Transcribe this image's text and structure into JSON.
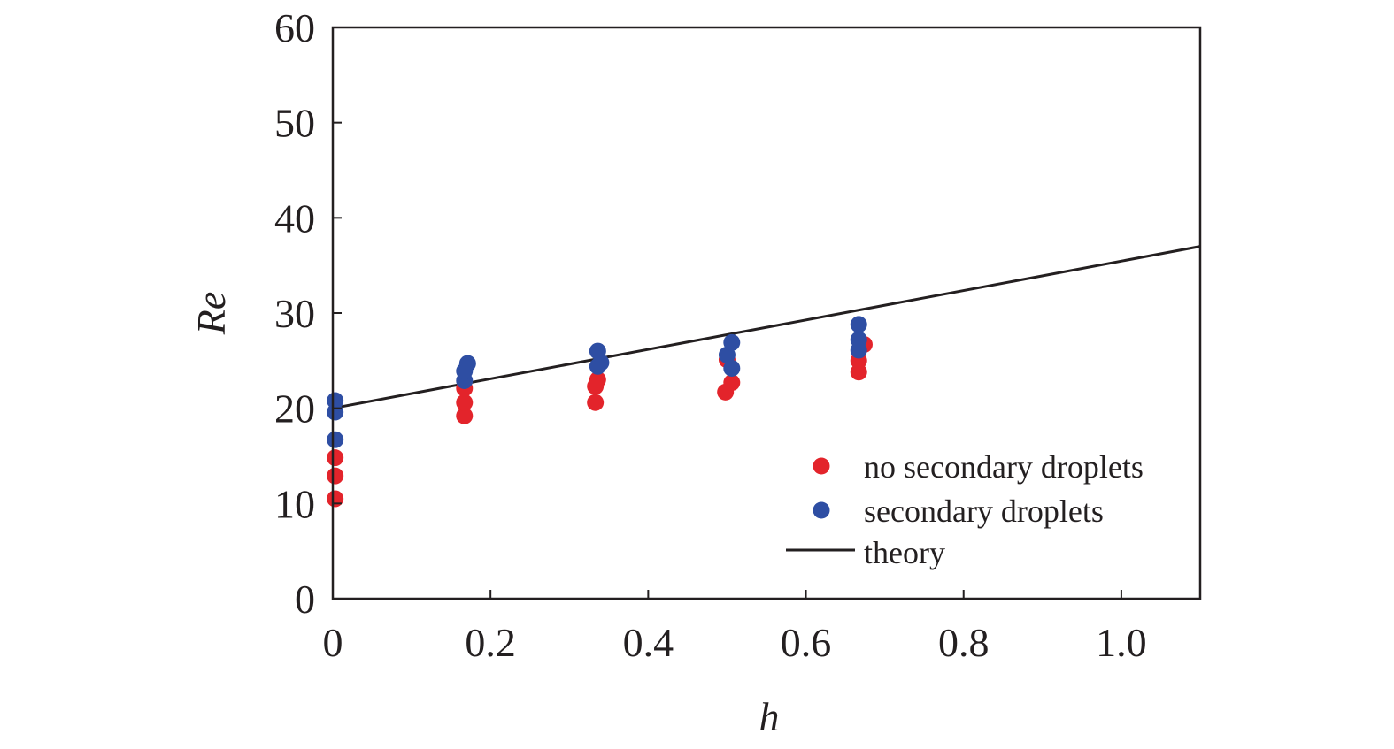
{
  "chart_data": {
    "type": "scatter",
    "title": "",
    "xlabel": "h",
    "ylabel": "Re",
    "xlim": [
      0,
      1.1
    ],
    "ylim": [
      0,
      60
    ],
    "xticks": [
      0,
      0.2,
      0.4,
      0.6,
      0.8,
      1.0
    ],
    "xtick_labels": [
      "0",
      "0.2",
      "0.4",
      "0.6",
      "0.8",
      "1.0"
    ],
    "yticks": [
      0,
      10,
      20,
      30,
      40,
      50,
      60
    ],
    "ytick_labels": [
      "0",
      "10",
      "20",
      "30",
      "40",
      "50",
      "60"
    ],
    "grid": false,
    "legend_position": "bottom-right",
    "series": [
      {
        "name": "no secondary droplets",
        "kind": "scatter",
        "color": "#e3242b",
        "points": [
          [
            0.003,
            10.5
          ],
          [
            0.003,
            12.9
          ],
          [
            0.003,
            14.8
          ],
          [
            0.167,
            19.2
          ],
          [
            0.167,
            20.6
          ],
          [
            0.167,
            22.1
          ],
          [
            0.333,
            20.6
          ],
          [
            0.333,
            22.3
          ],
          [
            0.336,
            23.0
          ],
          [
            0.498,
            21.7
          ],
          [
            0.506,
            22.7
          ],
          [
            0.5,
            25.1
          ],
          [
            0.667,
            23.8
          ],
          [
            0.667,
            25.0
          ],
          [
            0.674,
            26.7
          ]
        ]
      },
      {
        "name": "secondary droplets",
        "kind": "scatter",
        "color": "#2e4ea3",
        "points": [
          [
            0.003,
            16.7
          ],
          [
            0.003,
            19.6
          ],
          [
            0.003,
            20.8
          ],
          [
            0.167,
            22.9
          ],
          [
            0.167,
            23.9
          ],
          [
            0.171,
            24.7
          ],
          [
            0.336,
            24.4
          ],
          [
            0.34,
            24.8
          ],
          [
            0.336,
            26.0
          ],
          [
            0.5,
            25.6
          ],
          [
            0.506,
            24.2
          ],
          [
            0.506,
            26.9
          ],
          [
            0.667,
            26.1
          ],
          [
            0.667,
            27.2
          ],
          [
            0.667,
            28.8
          ]
        ]
      },
      {
        "name": "theory",
        "kind": "line",
        "color": "#231f20",
        "points": [
          [
            0,
            20.0
          ],
          [
            1.1,
            37.0
          ]
        ]
      }
    ]
  }
}
